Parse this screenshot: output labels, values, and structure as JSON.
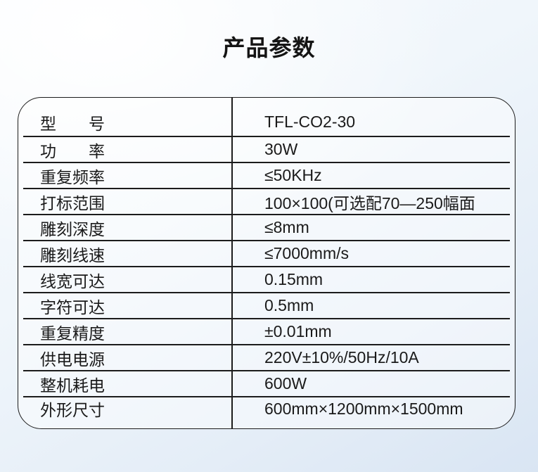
{
  "page": {
    "title": "产品参数"
  },
  "colors": {
    "text": "#1a1a1a",
    "table_border": "#1c1c1c",
    "background_top": "#ffffff",
    "background_bottom": "#d9e5f3"
  },
  "table": {
    "columns": [
      "parameter",
      "value"
    ],
    "rows": [
      {
        "label": "型　　号",
        "value": "TFL-CO2-30"
      },
      {
        "label": "功　　率",
        "value": "30W"
      },
      {
        "label": "重复频率",
        "value": "≤50KHz"
      },
      {
        "label": "打标范围",
        "value": "100×100(可选配70—250幅面"
      },
      {
        "label": "雕刻深度",
        "value": "≤8mm"
      },
      {
        "label": "雕刻线速",
        "value": "≤7000mm/s"
      },
      {
        "label": "线宽可达",
        "value": "0.15mm"
      },
      {
        "label": "字符可达",
        "value": "0.5mm"
      },
      {
        "label": "重复精度",
        "value": "±0.01mm"
      },
      {
        "label": "供电电源",
        "value": "220V±10%/50Hz/10A"
      },
      {
        "label": "整机耗电",
        "value": "600W"
      },
      {
        "label": "外形尺寸",
        "value": "600mm×1200mm×1500mm"
      }
    ]
  }
}
